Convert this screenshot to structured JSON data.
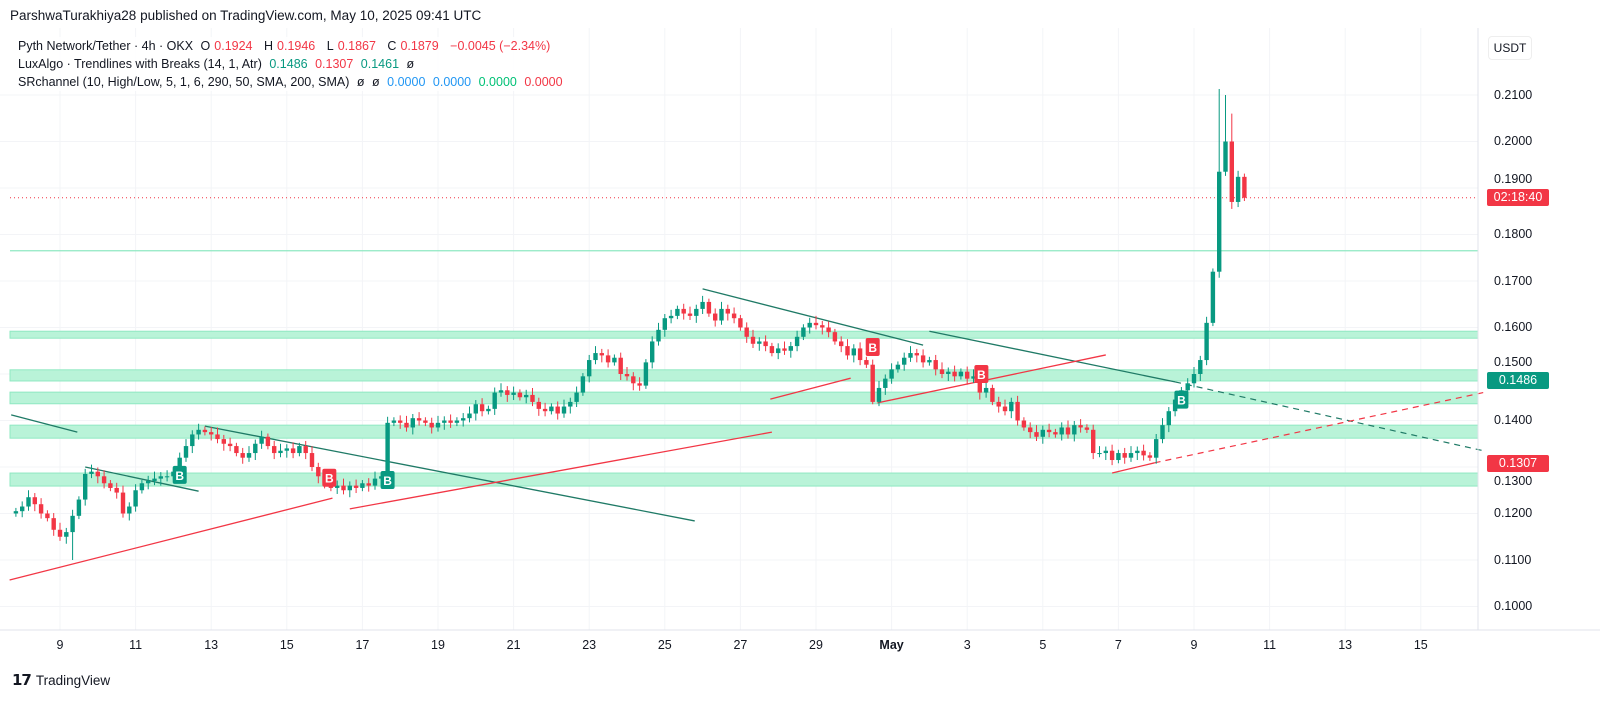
{
  "header": {
    "published": "ParshwaTurakhiya28 published on TradingView.com, May 10, 2025 09:41 UTC"
  },
  "legend": {
    "symbol": "Pyth Network/Tether · 4h · OKX",
    "o_label": "O",
    "o": "0.1924",
    "h_label": "H",
    "h": "0.1946",
    "l_label": "L",
    "l": "0.1867",
    "c_label": "C",
    "c": "0.1879",
    "change": "−0.0045 (−2.34%)",
    "ind1_name": "LuxAlgo · Trendlines with Breaks (14, 1, Atr)",
    "ind1_v1": "0.1486",
    "ind1_v2": "0.1307",
    "ind1_v3": "0.1461",
    "ind1_na": "ø",
    "ind2_name": "SRchannel (10, High/Low, 5, 1, 6, 290, 50, SMA, 200, SMA)",
    "ind2_na1": "ø",
    "ind2_na2": "ø",
    "ind2_v1": "0.0000",
    "ind2_v2": "0.0000",
    "ind2_v3": "0.0000",
    "ind2_v4": "0.0000"
  },
  "footer": {
    "brand": "TradingView"
  },
  "colors": {
    "up": "#089981",
    "down": "#f23645",
    "zone_fill": "#b9f3d8",
    "zone_line": "#8fe8c2",
    "trend_up_break": "#f23645",
    "trend_down_break": "#1f7a66"
  },
  "chart_data": {
    "type": "candlestick",
    "interval": "4h",
    "start": "2025-04-07 20:00",
    "first_open": 0.12,
    "closes": [
      0.1205,
      0.1215,
      0.1235,
      0.122,
      0.12,
      0.119,
      0.1165,
      0.115,
      0.116,
      0.1195,
      0.123,
      0.1285,
      0.129,
      0.128,
      0.1265,
      0.1255,
      0.1245,
      0.12,
      0.1215,
      0.125,
      0.1265,
      0.127,
      0.1275,
      0.128,
      0.128,
      0.129,
      0.132,
      0.1345,
      0.137,
      0.138,
      0.1375,
      0.137,
      0.136,
      0.135,
      0.1345,
      0.133,
      0.132,
      0.133,
      0.135,
      0.1365,
      0.1345,
      0.133,
      0.1335,
      0.134,
      0.133,
      0.1345,
      0.133,
      0.13,
      0.128,
      0.1265,
      0.1255,
      0.126,
      0.125,
      0.126,
      0.1255,
      0.1265,
      0.126,
      0.1275,
      0.128,
      0.1395,
      0.14,
      0.1395,
      0.1385,
      0.1405,
      0.14,
      0.1395,
      0.1385,
      0.1395,
      0.14,
      0.1395,
      0.14,
      0.1405,
      0.1415,
      0.1435,
      0.142,
      0.1425,
      0.146,
      0.1465,
      0.1455,
      0.146,
      0.145,
      0.1455,
      0.144,
      0.1425,
      0.142,
      0.143,
      0.1415,
      0.143,
      0.144,
      0.146,
      0.1495,
      0.153,
      0.1545,
      0.154,
      0.1525,
      0.1535,
      0.15,
      0.1495,
      0.148,
      0.1475,
      0.1525,
      0.157,
      0.1595,
      0.162,
      0.1625,
      0.164,
      0.163,
      0.1625,
      0.164,
      0.1655,
      0.163,
      0.1615,
      0.164,
      0.163,
      0.162,
      0.16,
      0.158,
      0.1565,
      0.157,
      0.156,
      0.1545,
      0.1555,
      0.155,
      0.156,
      0.158,
      0.16,
      0.161,
      0.1605,
      0.16,
      0.159,
      0.157,
      0.156,
      0.154,
      0.1555,
      0.153,
      0.152,
      0.144,
      0.147,
      0.149,
      0.151,
      0.152,
      0.1535,
      0.1545,
      0.154,
      0.1525,
      0.153,
      0.151,
      0.15,
      0.1505,
      0.1495,
      0.1505,
      0.149,
      0.1495,
      0.146,
      0.147,
      0.144,
      0.143,
      0.142,
      0.144,
      0.14,
      0.1385,
      0.1375,
      0.1365,
      0.138,
      0.1375,
      0.137,
      0.1385,
      0.137,
      0.139,
      0.1385,
      0.138,
      0.133,
      0.133,
      0.1335,
      0.1315,
      0.133,
      0.132,
      0.133,
      0.1335,
      0.1325,
      0.132,
      0.136,
      0.139,
      0.142,
      0.1445,
      0.1465,
      0.148,
      0.15,
      0.153,
      0.161,
      0.172,
      0.1935,
      0.2,
      0.187,
      0.1924,
      0.1879
    ],
    "notable_extremes": [
      {
        "time": "2025-05-09 16:00",
        "high": 0.2113
      },
      {
        "time": "2025-05-09 20:00",
        "high": 0.21
      },
      {
        "time": "2025-05-10 00:00",
        "high": 0.206
      },
      {
        "time": "2025-04-30 12:00",
        "low": 0.1435
      },
      {
        "time": "2025-04-09 08:00",
        "low": 0.11
      }
    ],
    "y_axis": {
      "unit": "USDT",
      "ylim": [
        0.095,
        0.2155
      ],
      "ticks": [
        "0.1000",
        "0.1100",
        "0.1200",
        "0.1300",
        "0.1400",
        "0.1500",
        "0.1600",
        "0.1700",
        "0.1800",
        "0.1900",
        "0.2000",
        "0.2100"
      ]
    },
    "x_axis": {
      "ticks": [
        {
          "date": "2025-04-09",
          "label": "9"
        },
        {
          "date": "2025-04-11",
          "label": "11"
        },
        {
          "date": "2025-04-13",
          "label": "13"
        },
        {
          "date": "2025-04-15",
          "label": "15"
        },
        {
          "date": "2025-04-17",
          "label": "17"
        },
        {
          "date": "2025-04-19",
          "label": "19"
        },
        {
          "date": "2025-04-21",
          "label": "21"
        },
        {
          "date": "2025-04-23",
          "label": "23"
        },
        {
          "date": "2025-04-25",
          "label": "25"
        },
        {
          "date": "2025-04-27",
          "label": "27"
        },
        {
          "date": "2025-04-29",
          "label": "29"
        },
        {
          "date": "2025-05-01",
          "label": "May",
          "bold": true
        },
        {
          "date": "2025-05-03",
          "label": "3"
        },
        {
          "date": "2025-05-05",
          "label": "5"
        },
        {
          "date": "2025-05-07",
          "label": "7"
        },
        {
          "date": "2025-05-09",
          "label": "9"
        },
        {
          "date": "2025-05-11",
          "label": "11"
        },
        {
          "date": "2025-05-13",
          "label": "13"
        },
        {
          "date": "2025-05-15",
          "label": "15"
        }
      ]
    },
    "last_price": 0.1879,
    "price_labels": [
      {
        "price": 0.1879,
        "text": "02:18:40",
        "color": "#f23645"
      },
      {
        "price": 0.1486,
        "text": "0.1486",
        "color": "#089981"
      },
      {
        "price": 0.1307,
        "text": "0.1307",
        "color": "#f23645"
      }
    ],
    "sr_zones": [
      [
        0.1577,
        0.1592
      ],
      [
        0.1485,
        0.1509
      ],
      [
        0.1436,
        0.1461
      ],
      [
        0.1362,
        0.139
      ],
      [
        0.1259,
        0.1287
      ]
    ],
    "sr_line": 0.1765,
    "trendlines": [
      {
        "kind": "down",
        "from": [
          "2025-04-07 17:00",
          0.1412
        ],
        "to": [
          "2025-04-09 11:00",
          0.1375
        ]
      },
      {
        "kind": "down",
        "from": [
          "2025-04-09 16:00",
          0.13
        ],
        "to": [
          "2025-04-12 16:00",
          0.1248
        ]
      },
      {
        "kind": "down",
        "from": [
          "2025-04-12 20:00",
          0.1388
        ],
        "to": [
          "2025-04-25 19:00",
          0.1184
        ]
      },
      {
        "kind": "down",
        "from": [
          "2025-04-26 00:00",
          0.1683
        ],
        "to": [
          "2025-05-01 20:00",
          0.1562
        ]
      },
      {
        "kind": "down",
        "from": [
          "2025-05-02 00:00",
          0.1592
        ],
        "to": [
          "2025-05-08 12:00",
          0.1483
        ],
        "extend_to": [
          "2025-05-16 17:00",
          0.1334
        ]
      },
      {
        "kind": "up",
        "from": [
          "2025-04-07 16:00",
          0.1057
        ],
        "to": [
          "2025-04-16 05:00",
          0.1233
        ]
      },
      {
        "kind": "up",
        "from": [
          "2025-04-16 16:00",
          0.121
        ],
        "to": [
          "2025-04-27 20:00",
          0.1375
        ]
      },
      {
        "kind": "up",
        "from": [
          "2025-04-27 19:00",
          0.1446
        ],
        "to": [
          "2025-04-29 22:00",
          0.1491
        ]
      },
      {
        "kind": "up",
        "from": [
          "2025-04-30 15:00",
          0.1438
        ],
        "to": [
          "2025-05-06 16:00",
          0.1541
        ]
      },
      {
        "kind": "up",
        "from": [
          "2025-05-06 20:00",
          0.1287
        ],
        "to": [
          "2025-05-07 23:00",
          0.1309
        ],
        "extend_to": [
          "2025-05-16 17:00",
          0.1461
        ]
      }
    ],
    "break_markers": [
      {
        "time": "2025-04-12 04:00",
        "label": "B",
        "direction": "up",
        "price": 0.1283
      },
      {
        "time": "2025-04-16 03:00",
        "label": "B",
        "direction": "down",
        "price": 0.1277
      },
      {
        "time": "2025-04-17 16:00",
        "label": "B",
        "direction": "up",
        "price": 0.1272
      },
      {
        "time": "2025-04-30 12:00",
        "label": "B",
        "direction": "down",
        "price": 0.1558
      },
      {
        "time": "2025-05-03 09:00",
        "label": "B",
        "direction": "down",
        "price": 0.15
      },
      {
        "time": "2025-05-08 16:00",
        "label": "B",
        "direction": "up",
        "price": 0.1445
      }
    ]
  }
}
